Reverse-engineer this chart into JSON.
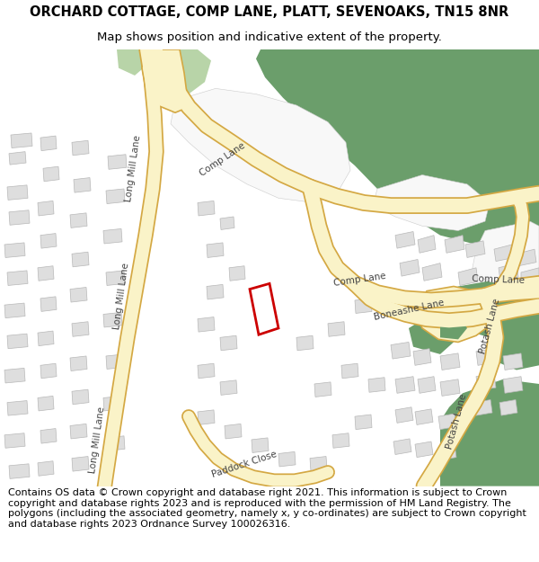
{
  "title": "ORCHARD COTTAGE, COMP LANE, PLATT, SEVENOAKS, TN15 8NR",
  "subtitle": "Map shows position and indicative extent of the property.",
  "footer": "Contains OS data © Crown copyright and database right 2021. This information is subject to Crown copyright and database rights 2023 and is reproduced with the permission of HM Land Registry. The polygons (including the associated geometry, namely x, y co-ordinates) are subject to Crown copyright and database rights 2023 Ordnance Survey 100026316.",
  "map_bg": "#f2f0eb",
  "road_fill": "#faf3c8",
  "road_border": "#d4a843",
  "green_dark": "#6b9e6b",
  "green_light": "#b8d4a8",
  "building_fill": "#dedede",
  "building_border": "#b8b8b8",
  "white_area": "#f8f8f8",
  "property_color": "#cc0000",
  "title_fontsize": 10.5,
  "subtitle_fontsize": 9.5,
  "footer_fontsize": 8.0,
  "label_fontsize": 7.5,
  "label_color": "#444444"
}
